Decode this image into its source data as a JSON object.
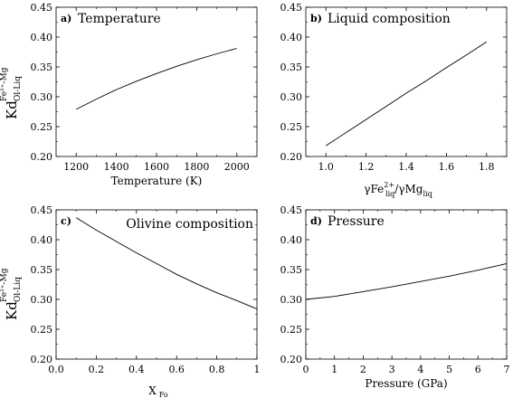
{
  "chart_data": [
    {
      "type": "line",
      "tag": "a)",
      "title": "Temperature",
      "xlabel": "Temperature (K)",
      "xlim": [
        1100,
        2100
      ],
      "ylim": [
        0.2,
        0.45
      ],
      "xticks": [
        "1200",
        "1400",
        "1600",
        "1800",
        "2000"
      ],
      "yticks": [
        "0.20",
        "0.25",
        "0.30",
        "0.35",
        "0.40",
        "0.45"
      ],
      "x": [
        1200,
        1300,
        1400,
        1500,
        1600,
        1700,
        1800,
        1900,
        2000
      ],
      "y": [
        0.279,
        0.296,
        0.312,
        0.326,
        0.339,
        0.351,
        0.362,
        0.372,
        0.381
      ]
    },
    {
      "type": "line",
      "tag": "b)",
      "title": "Liquid composition",
      "xlabel_parts": {
        "pre1": "γFe",
        "sub1": "liq",
        "sup1": "2+",
        "mid": "/γMg",
        "sub2": "liq"
      },
      "xlim": [
        0.9,
        1.9
      ],
      "ylim": [
        0.2,
        0.45
      ],
      "xticks": [
        "1.0",
        "1.2",
        "1.4",
        "1.6",
        "1.8"
      ],
      "yticks": [
        "0.20",
        "0.25",
        "0.30",
        "0.35",
        "0.40",
        "0.45"
      ],
      "x": [
        1.0,
        1.1,
        1.2,
        1.3,
        1.4,
        1.5,
        1.6,
        1.7,
        1.8
      ],
      "y": [
        0.218,
        0.24,
        0.262,
        0.284,
        0.306,
        0.327,
        0.349,
        0.37,
        0.392
      ]
    },
    {
      "type": "line",
      "tag": "c)",
      "title": "Olivine composition",
      "xlabel_parts": {
        "pre": "X",
        "sub": "Fo"
      },
      "xlim": [
        0,
        1
      ],
      "ylim": [
        0.2,
        0.45
      ],
      "xticks": [
        "0.0",
        "0.2",
        "0.4",
        "0.6",
        "0.8",
        "1"
      ],
      "yticks": [
        "0.20",
        "0.25",
        "0.30",
        "0.35",
        "0.40",
        "0.45"
      ],
      "x": [
        0.1,
        0.2,
        0.3,
        0.4,
        0.5,
        0.6,
        0.7,
        0.8,
        0.9,
        1.0
      ],
      "y": [
        0.437,
        0.416,
        0.397,
        0.378,
        0.36,
        0.342,
        0.326,
        0.311,
        0.298,
        0.284
      ]
    },
    {
      "type": "line",
      "tag": "d)",
      "title": "Pressure",
      "xlabel": "Pressure (GPa)",
      "xlim": [
        0,
        7
      ],
      "ylim": [
        0.2,
        0.45
      ],
      "xticks": [
        "0",
        "1",
        "2",
        "3",
        "4",
        "5",
        "6",
        "7"
      ],
      "yticks": [
        "0.20",
        "0.25",
        "0.30",
        "0.35",
        "0.40",
        "0.45"
      ],
      "x": [
        0,
        1,
        2,
        3,
        4,
        5,
        6,
        7
      ],
      "y": [
        0.3,
        0.305,
        0.313,
        0.321,
        0.33,
        0.339,
        0.349,
        0.36
      ]
    }
  ],
  "ylabel": {
    "main": "Kd",
    "sup": "Fe²⁺-Mg",
    "sub": "Ol-Liq"
  }
}
